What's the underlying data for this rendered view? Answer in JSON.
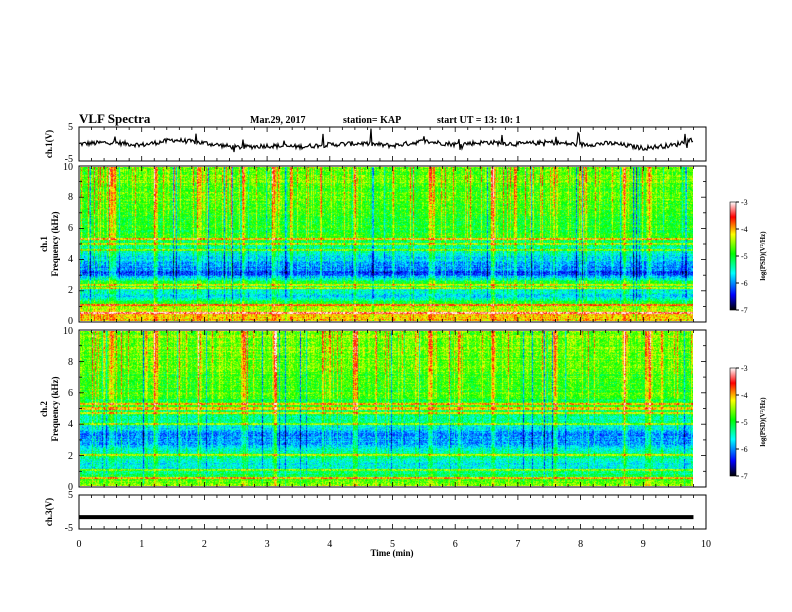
{
  "header": {
    "title": "VLF Spectra",
    "date": "Mar.29, 2017",
    "station": "station= KAP",
    "start": "start  UT =   13: 10: 1"
  },
  "chart_data": [
    {
      "type": "line",
      "panel": "ch1-voltage",
      "ylabel": "ch.1(V)",
      "ylim": [
        -5,
        5
      ],
      "ytick_labels": [
        "5",
        "-5"
      ],
      "xlim": [
        0,
        10
      ],
      "x": [
        0,
        0.5,
        1,
        1.5,
        2,
        2.5,
        3,
        3.5,
        4,
        4.5,
        5,
        5.5,
        6,
        6.5,
        7,
        7.5,
        8,
        8.5,
        9,
        9.5,
        9.8
      ],
      "values": [
        0,
        0.5,
        -0.3,
        1.2,
        0.3,
        -1,
        -0.5,
        -0.8,
        -0.2,
        0.2,
        -0.5,
        0.8,
        -0.1,
        0.5,
        0,
        0.5,
        -0.2,
        0.2,
        -1.2,
        -0.3,
        1.5
      ]
    },
    {
      "type": "heatmap",
      "panel": "ch1-spectrogram",
      "ylabel_line1": "ch.1",
      "ylabel_line2": "Frequency  (kHz)",
      "ylim": [
        0,
        10
      ],
      "ytick_labels": [
        "0",
        "2",
        "4",
        "6",
        "8",
        "10"
      ],
      "xlim": [
        0,
        9.8
      ],
      "colorbar": {
        "label": "log(PSD)(V²/Hz)",
        "range": [
          -7,
          -3
        ],
        "tick_labels": [
          "-3",
          "-4",
          "-5",
          "-6",
          "-7"
        ]
      },
      "profile_freq_khz": [
        0,
        0.5,
        1,
        1.5,
        2,
        2.5,
        3,
        3.5,
        4,
        4.5,
        5,
        5.5,
        6,
        7,
        8,
        9,
        10
      ],
      "profile_log_psd": [
        -4.1,
        -4.2,
        -4.6,
        -5.7,
        -5.5,
        -5.0,
        -6.3,
        -6.0,
        -5.7,
        -5.5,
        -5.3,
        -5.0,
        -5.0,
        -4.9,
        -4.8,
        -4.7,
        -4.7
      ],
      "bright_lines_khz": [
        0.5,
        1.0,
        2.1,
        2.3,
        4.6,
        5.0,
        5.3
      ],
      "spike_times_min": [
        0.5,
        1.2,
        1.9,
        2.6,
        3.1,
        4.4,
        5.6,
        6.6,
        7.6,
        8.7,
        9.1
      ]
    },
    {
      "type": "heatmap",
      "panel": "ch2-spectrogram",
      "ylabel_line1": "ch.2",
      "ylabel_line2": "Frequency  (kHz)",
      "ylim": [
        0,
        10
      ],
      "ytick_labels": [
        "0",
        "2",
        "4",
        "6",
        "8",
        "10"
      ],
      "xlim": [
        0,
        9.8
      ],
      "colorbar": {
        "label": "log(PSD)(V²/Hz)",
        "range": [
          -7,
          -3
        ],
        "tick_labels": [
          "-3",
          "-4",
          "-5",
          "-6",
          "-7"
        ]
      },
      "profile_freq_khz": [
        0,
        0.5,
        1,
        1.5,
        2,
        2.5,
        3,
        3.5,
        4,
        4.5,
        5,
        5.5,
        6,
        7,
        8,
        9,
        10
      ],
      "profile_log_psd": [
        -4.4,
        -5.0,
        -5.5,
        -5.6,
        -5.2,
        -5.8,
        -6.0,
        -5.9,
        -5.5,
        -5.3,
        -5.0,
        -5.0,
        -4.8,
        -4.8,
        -4.7,
        -4.6,
        -4.6
      ],
      "bright_lines_khz": [
        0.5,
        1.0,
        2.0,
        4.0,
        4.7,
        5.0,
        5.3
      ],
      "spike_times_min": [
        0.5,
        1.2,
        1.9,
        2.6,
        3.1,
        4.4,
        5.6,
        6.6,
        7.6,
        8.7,
        9.1
      ]
    },
    {
      "type": "line",
      "panel": "ch3-voltage",
      "ylabel": "ch.3(V)",
      "ylim": [
        -5,
        5
      ],
      "ytick_labels": [
        "5",
        "-5"
      ],
      "xlim": [
        0,
        10
      ],
      "x": [
        0,
        9.8
      ],
      "values": [
        -1.5,
        -1.5
      ]
    }
  ],
  "x_axis": {
    "xlabel": "Time  (min)",
    "tick_labels": [
      "0",
      "1",
      "2",
      "3",
      "4",
      "5",
      "6",
      "7",
      "8",
      "9",
      "10"
    ]
  },
  "colors": {
    "colormap": [
      "#000000",
      "#0000ff",
      "#00ffff",
      "#00ff00",
      "#ffff00",
      "#ff0000",
      "#ffffff"
    ]
  }
}
